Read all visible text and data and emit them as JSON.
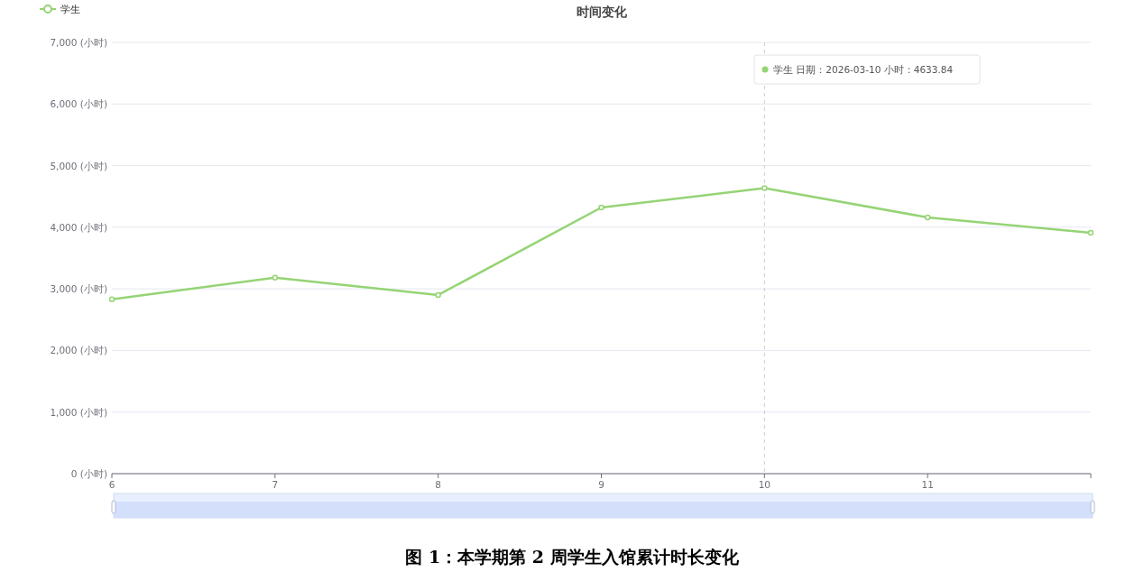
{
  "chart_data": {
    "type": "line",
    "title": "时间变化",
    "x": [
      6,
      7,
      8,
      9,
      10,
      11,
      12
    ],
    "series": [
      {
        "name": "学生",
        "color": "#95d475",
        "values": [
          2830,
          3180,
          2900,
          4320,
          4633.84,
          4160,
          3910
        ]
      }
    ],
    "xlim": [
      6,
      12
    ],
    "xticks": [
      6,
      7,
      8,
      9,
      10,
      11,
      {
        "value": 12,
        "label": null
      }
    ],
    "ylim": [
      0,
      7000
    ],
    "yticks": [
      {
        "value": 0,
        "label": "0 (小时)"
      },
      {
        "value": 1000,
        "label": "1,000 (小时)"
      },
      {
        "value": 2000,
        "label": "2,000 (小时)"
      },
      {
        "value": 3000,
        "label": "3,000 (小时)"
      },
      {
        "value": 4000,
        "label": "4,000 (小时)"
      },
      {
        "value": 5000,
        "label": "5,000 (小时)"
      },
      {
        "value": 6000,
        "label": "6,000 (小时)"
      },
      {
        "value": 7000,
        "label": "7,000 (小时)"
      }
    ],
    "grid": "y",
    "legend": "top left",
    "marker": "circle",
    "line_style": "solid",
    "ref_lines": [
      {
        "axis": "x",
        "value": 10,
        "color": "#cccccc",
        "line_style": "dashed"
      }
    ],
    "annotations": [
      "学生 日期：2026-03-10 小时：4633.84",
      "图 1：本学期第 2 周学生入馆累计时长变化"
    ]
  }
}
